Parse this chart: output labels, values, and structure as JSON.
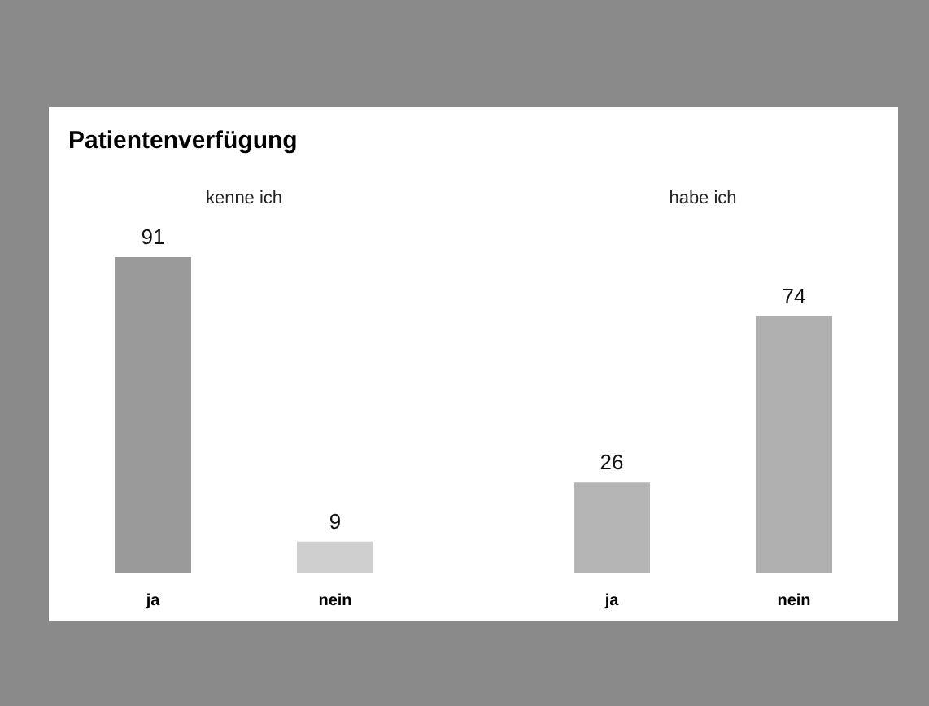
{
  "chart_data": [
    {
      "type": "bar",
      "title": "Patientenverfügung",
      "subtitle": "kenne ich",
      "categories": [
        "ja",
        "nein"
      ],
      "values": [
        91,
        9
      ],
      "colors": [
        "#9a9a9a",
        "#cfcfcf"
      ],
      "data_labels": true
    },
    {
      "type": "bar",
      "subtitle": "habe ich",
      "categories": [
        "ja",
        "nein"
      ],
      "values": [
        26,
        74
      ],
      "colors": [
        "#b5b5b5",
        "#b0b0b0"
      ],
      "data_labels": true
    }
  ]
}
